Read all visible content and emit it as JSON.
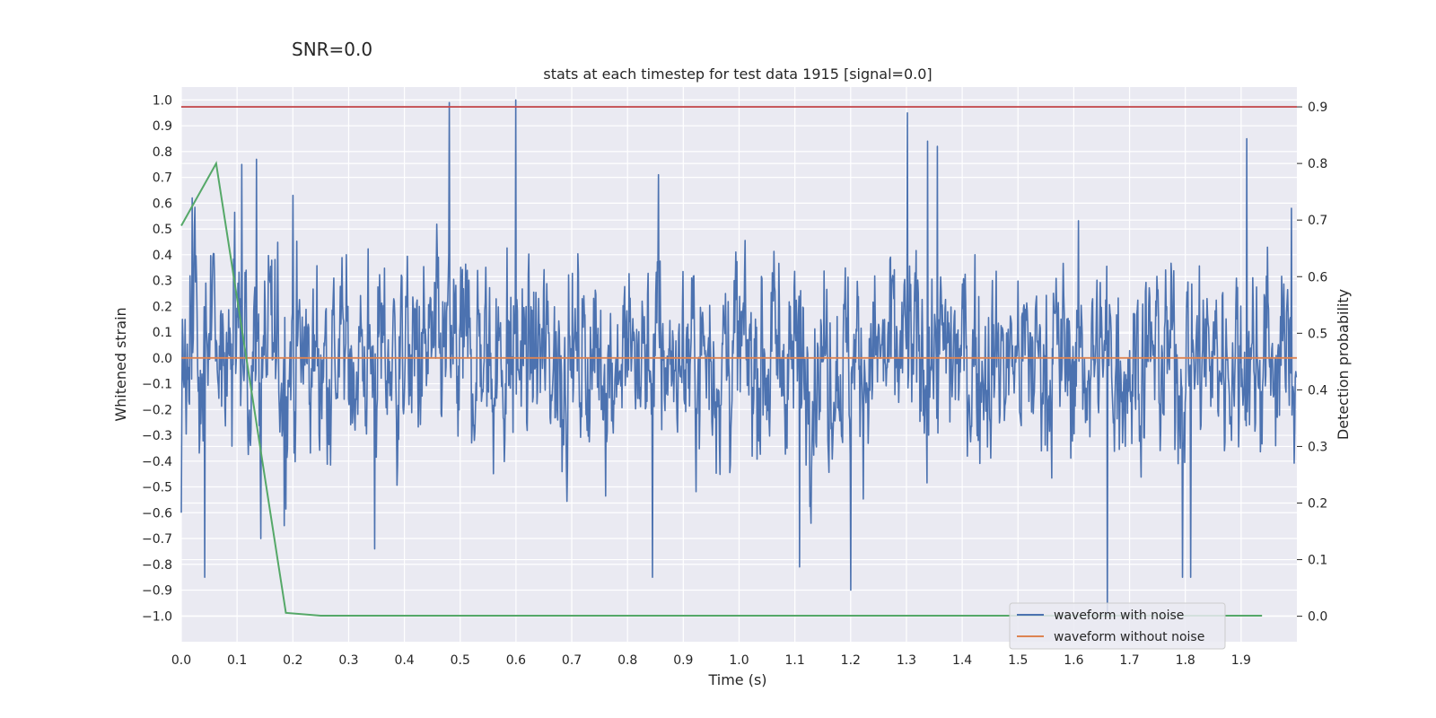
{
  "chart_data": {
    "type": "line",
    "suptitle": "SNR=0.0",
    "title": "stats at each timestep for test data 1915 [signal=0.0]",
    "xlabel": "Time (s)",
    "ylabel": "Whitened strain",
    "y2label": "Detection probability",
    "xlim": [
      0.0,
      2.0
    ],
    "ylim": [
      -1.1,
      1.05
    ],
    "y2lim": [
      -0.045,
      0.935
    ],
    "xticks": [
      "0.0",
      "0.1",
      "0.2",
      "0.3",
      "0.4",
      "0.5",
      "0.6",
      "0.7",
      "0.8",
      "0.9",
      "1.0",
      "1.1",
      "1.2",
      "1.3",
      "1.4",
      "1.5",
      "1.6",
      "1.7",
      "1.8",
      "1.9"
    ],
    "yticks": [
      "1.0",
      "0.9",
      "0.8",
      "0.7",
      "0.6",
      "0.5",
      "0.4",
      "0.3",
      "0.2",
      "0.1",
      "0.0",
      "−0.1",
      "−0.2",
      "−0.3",
      "−0.4",
      "−0.5",
      "−0.6",
      "−0.7",
      "−0.8",
      "−0.9",
      "−1.0"
    ],
    "y2ticks": [
      "0.9",
      "0.8",
      "0.7",
      "0.6",
      "0.5",
      "0.4",
      "0.3",
      "0.2",
      "0.1",
      "0.0"
    ],
    "grid": true,
    "legend_position": "lower-right",
    "colors": {
      "axes_bg": "#eaeaf2",
      "noise": "#4c72b0",
      "clean": "#dd8452",
      "prob": "#55a868",
      "threshold": "#c44e52"
    },
    "series": [
      {
        "name": "waveform with noise",
        "axis": "left",
        "color": "#4c72b0",
        "sample_rate": 1024,
        "amplitude_std": 0.25,
        "peaks": [
          {
            "x": 0.0,
            "y": -0.6
          },
          {
            "x": 0.02,
            "y": 0.62
          },
          {
            "x": 0.042,
            "y": -0.85
          },
          {
            "x": 0.108,
            "y": 0.75
          },
          {
            "x": 0.135,
            "y": 0.77
          },
          {
            "x": 0.143,
            "y": -0.7
          },
          {
            "x": 0.185,
            "y": -0.65
          },
          {
            "x": 0.2,
            "y": 0.63
          },
          {
            "x": 0.347,
            "y": -0.74
          },
          {
            "x": 0.48,
            "y": 0.99
          },
          {
            "x": 0.6,
            "y": 1.0
          },
          {
            "x": 0.845,
            "y": -0.85
          },
          {
            "x": 0.855,
            "y": 0.71
          },
          {
            "x": 1.108,
            "y": -0.81
          },
          {
            "x": 1.2,
            "y": -0.9
          },
          {
            "x": 1.302,
            "y": 0.95
          },
          {
            "x": 1.338,
            "y": 0.84
          },
          {
            "x": 1.355,
            "y": 0.82
          },
          {
            "x": 1.66,
            "y": -1.0
          },
          {
            "x": 1.795,
            "y": -0.85
          },
          {
            "x": 1.81,
            "y": -0.85
          },
          {
            "x": 1.91,
            "y": 0.85
          },
          {
            "x": 1.99,
            "y": 0.58
          }
        ]
      },
      {
        "name": "waveform without noise",
        "axis": "left",
        "color": "#dd8452",
        "x": [
          0.0,
          2.0
        ],
        "y": [
          0.0,
          0.0
        ]
      },
      {
        "name": "",
        "axis": "right",
        "color": "#55a868",
        "x": [
          0.0,
          0.0625,
          0.1875,
          0.25,
          0.3125,
          0.5,
          1.0,
          1.5,
          1.9375
        ],
        "y": [
          0.69,
          0.8,
          0.006,
          0.001,
          0.001,
          0.001,
          0.001,
          0.001,
          0.001
        ]
      },
      {
        "name": "",
        "axis": "right",
        "color": "#c44e52",
        "x": [
          0.0,
          2.0
        ],
        "y": [
          0.9,
          0.9
        ]
      }
    ]
  }
}
